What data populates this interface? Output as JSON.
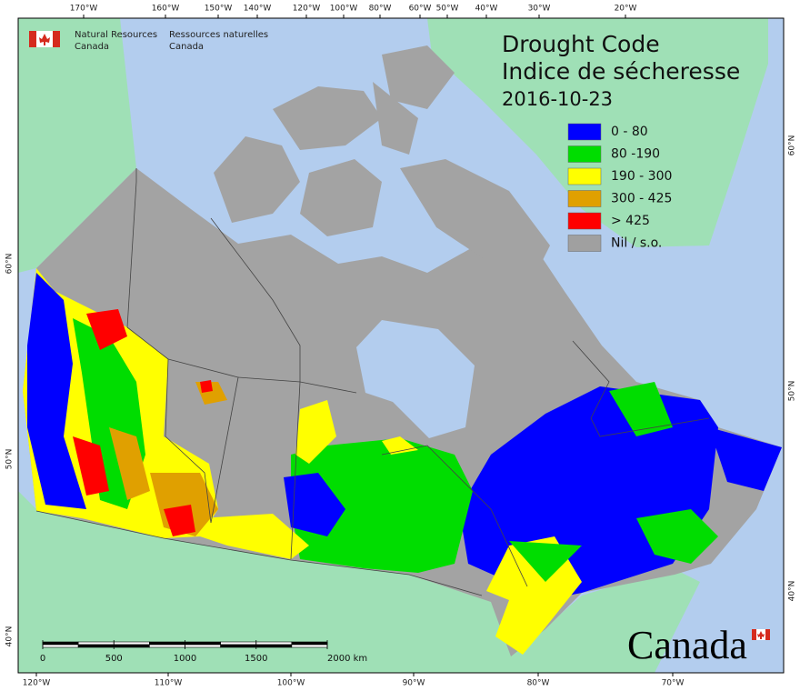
{
  "agency": {
    "en_line1": "Natural Resources",
    "en_line2": "Canada",
    "fr_line1": "Ressources naturelles",
    "fr_line2": "Canada"
  },
  "title": {
    "en": "Drought Code",
    "fr": "Indice de sécheresse",
    "date": "2016-10-23"
  },
  "legend": [
    {
      "label": "0 - 80",
      "color": "#0000ff"
    },
    {
      "label": "80 -190",
      "color": "#00dd00"
    },
    {
      "label": "190 - 300",
      "color": "#ffff00"
    },
    {
      "label": "300 - 425",
      "color": "#e0a000"
    },
    {
      "label": "> 425",
      "color": "#ff0000"
    },
    {
      "label": "Nil / s.o.",
      "color": "#a0a0a0"
    }
  ],
  "graticule": {
    "top": [
      "170°W",
      "160°W",
      "150°W",
      "140°W",
      "120°W",
      "100°W",
      "80°W",
      "60°W",
      "50°W",
      "40°W",
      "30°W",
      "20°W"
    ],
    "bottom": [
      "120°W",
      "110°W",
      "100°W",
      "90°W",
      "80°W",
      "70°W"
    ],
    "left": [
      "60°N",
      "50°N",
      "40°N"
    ],
    "right": [
      "60°N",
      "50°N",
      "40°N"
    ]
  },
  "scale_bar": {
    "ticks": [
      0,
      500,
      1000,
      1500,
      {
        "value": 2000,
        "label": "2000 km"
      }
    ]
  },
  "wordmark": "Canada"
}
